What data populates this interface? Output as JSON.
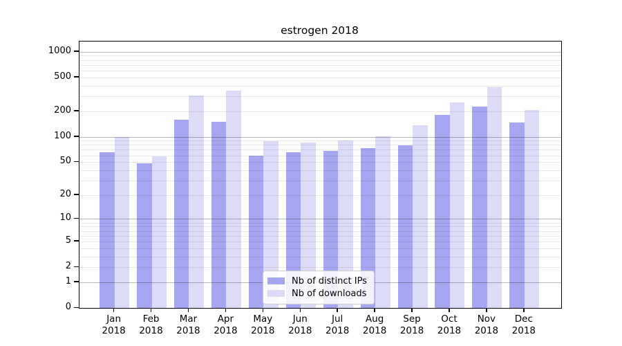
{
  "chart_data": {
    "type": "bar",
    "title": "estrogen 2018",
    "categories": [
      "Jan 2018",
      "Feb 2018",
      "Mar 2018",
      "Apr 2018",
      "May 2018",
      "Jun 2018",
      "Jul 2018",
      "Aug 2018",
      "Sep 2018",
      "Oct 2018",
      "Nov 2018",
      "Dec 2018"
    ],
    "series": [
      {
        "name": "Nb of distinct IPs",
        "color": "#a6a6f2",
        "values": [
          66,
          48,
          160,
          150,
          60,
          65,
          68,
          73,
          79,
          180,
          225,
          146
        ]
      },
      {
        "name": "Nb of downloads",
        "color": "#dcdcf8",
        "values": [
          100,
          58,
          305,
          350,
          88,
          86,
          90,
          102,
          137,
          252,
          380,
          206
        ]
      }
    ],
    "xlabel": "",
    "ylabel": "",
    "yscale": "log1p",
    "ylim": [
      0,
      1313
    ],
    "yticks": [
      0,
      1,
      2,
      5,
      10,
      20,
      50,
      100,
      200,
      500,
      1000
    ],
    "grid": {
      "major": [
        1,
        10,
        100,
        1000
      ],
      "minor": [
        2,
        3,
        4,
        5,
        6,
        7,
        8,
        9,
        20,
        30,
        40,
        50,
        60,
        70,
        80,
        90,
        200,
        300,
        400,
        500,
        600,
        700,
        800,
        900
      ]
    },
    "legend_position": "inside-bottom-center",
    "colors": {
      "axis": "#000000",
      "grid_major": "#b7b7b7",
      "grid_minor": "#e9e9e9",
      "legend_border": "#cccccc"
    }
  }
}
